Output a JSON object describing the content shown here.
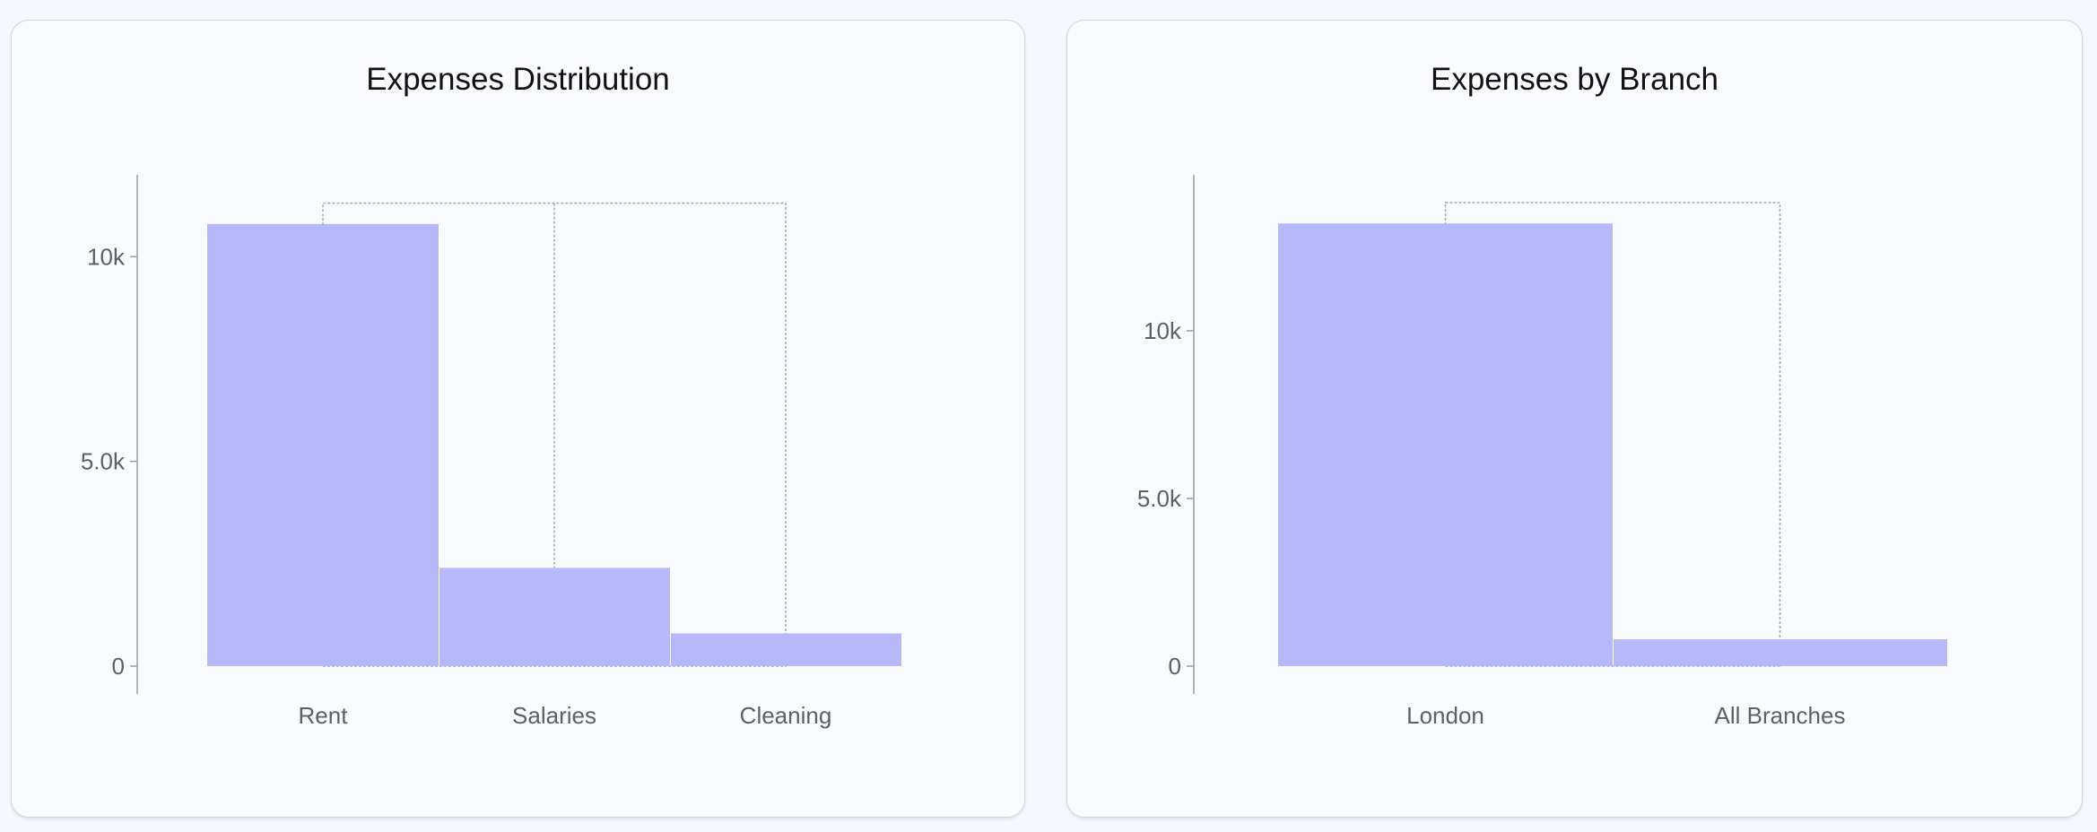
{
  "colors": {
    "bar": "#b6b8f9",
    "axis": "#9a9ca2",
    "bracket": "#a8a8ad",
    "background": "#f4f7fd",
    "panel": "#f9fbfe"
  },
  "chart_data": [
    {
      "type": "bar",
      "title": "Expenses Distribution",
      "categories": [
        "Rent",
        "Salaries",
        "Cleaning"
      ],
      "values": [
        10800,
        2400,
        800
      ],
      "ylim": [
        0,
        12000
      ],
      "yticks": [
        {
          "value": 0,
          "label": "0"
        },
        {
          "value": 5000,
          "label": "5.0k"
        },
        {
          "value": 10000,
          "label": "10k"
        }
      ],
      "xlabel": "",
      "ylabel": "",
      "grid": false,
      "legend": "none"
    },
    {
      "type": "bar",
      "title": "Expenses by Branch",
      "categories": [
        "London",
        "All Branches"
      ],
      "values": [
        13200,
        800
      ],
      "ylim": [
        0,
        14650
      ],
      "yticks": [
        {
          "value": 0,
          "label": "0"
        },
        {
          "value": 5000,
          "label": "5.0k"
        },
        {
          "value": 10000,
          "label": "10k"
        }
      ],
      "xlabel": "",
      "ylabel": "",
      "grid": false,
      "legend": "none"
    }
  ]
}
